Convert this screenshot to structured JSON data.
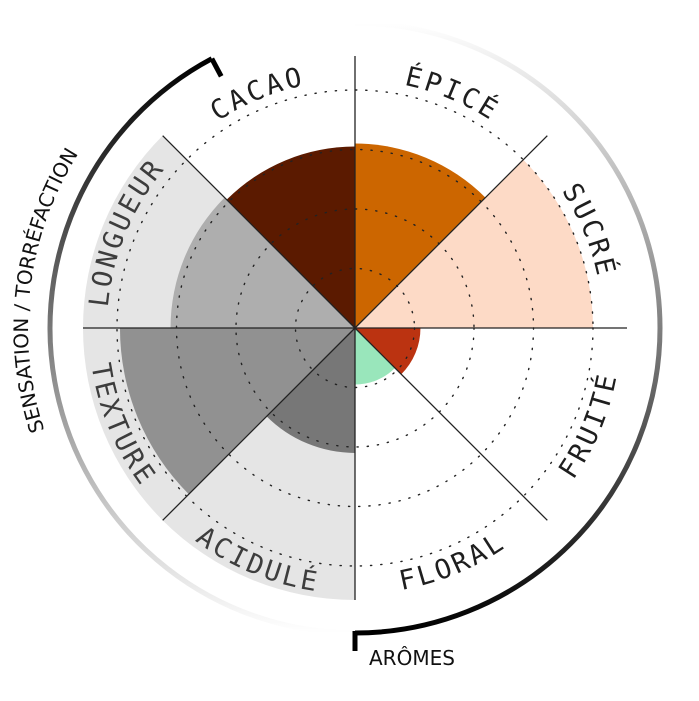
{
  "chart_data": {
    "type": "polar-area",
    "scale_max": 4,
    "rings": [
      1,
      2,
      3,
      4
    ],
    "grid": true,
    "categories": [
      {
        "label": "ÉPICÉ",
        "value": 3.1,
        "color": "#cc6600",
        "background": false
      },
      {
        "label": "SUCRÉ",
        "value": 4.0,
        "color": "#fddac6",
        "background": false
      },
      {
        "label": "FRUITÉ",
        "value": 1.1,
        "color": "#bb3311",
        "background": false
      },
      {
        "label": "FLORAL",
        "value": 0.95,
        "color": "#99e6bb",
        "background": false
      },
      {
        "label": "ACIDULÉ",
        "value": 2.1,
        "color": "#777777",
        "background": true
      },
      {
        "label": "TEXTURE",
        "value": 3.95,
        "color": "#919191",
        "background": true
      },
      {
        "label": "LONGUEUR",
        "value": 3.1,
        "color": "#aeaeae",
        "background": true
      },
      {
        "label": "CACAO",
        "value": 3.05,
        "color": "#5b1a00",
        "background": false
      }
    ],
    "groups": [
      {
        "label": "ARÔMES"
      },
      {
        "label": "SENSATION / TORRÉFACTION"
      }
    ]
  }
}
